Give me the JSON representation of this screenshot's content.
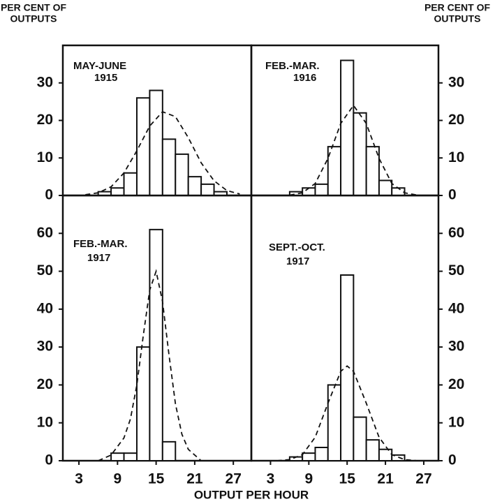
{
  "labels": {
    "y_label_left": [
      "PER CENT OF",
      "OUTPUTS"
    ],
    "y_label_right": [
      "PER CENT OF",
      "OUTPUTS"
    ],
    "x_label": "OUTPUT PER HOUR"
  },
  "chart_data": [
    {
      "type": "histogram",
      "title": "MAY-JUNE",
      "subtitle": "1915",
      "yaxis_side": "left",
      "bins": [
        6,
        8,
        10,
        12,
        14,
        16,
        18,
        20,
        22,
        24,
        26
      ],
      "counts": [
        1,
        2,
        6,
        26,
        28,
        15,
        11,
        5,
        3,
        1
      ],
      "curve_x": [
        4,
        6,
        8,
        10,
        12,
        14,
        16,
        18,
        20,
        22,
        24,
        26,
        28
      ],
      "curve_values": [
        0.2,
        0.7,
        2.3,
        6,
        11.9,
        18.5,
        22.3,
        21,
        15.4,
        8.7,
        3.9,
        1.3,
        0.4
      ],
      "xlim": [
        0.5,
        29.8
      ],
      "ylim": [
        0,
        40
      ],
      "yticks": [
        0,
        10,
        20,
        30
      ]
    },
    {
      "type": "histogram",
      "title": "FEB.-MAR.",
      "subtitle": "1916",
      "yaxis_side": "right",
      "bins": [
        6,
        8,
        10,
        12,
        14,
        16,
        18,
        20,
        22,
        24
      ],
      "counts": [
        1,
        2,
        3,
        13,
        36,
        22,
        13,
        4,
        2
      ],
      "curve_x": [
        6,
        8,
        10,
        12,
        14,
        16,
        18,
        20,
        22,
        24,
        26
      ],
      "curve_values": [
        0.1,
        0.7,
        3.2,
        9.9,
        19.2,
        24,
        19.2,
        9.9,
        3.2,
        0.7,
        0.1
      ],
      "xlim": [
        0,
        29.3
      ],
      "ylim": [
        0,
        40
      ],
      "yticks": [
        0,
        10,
        20,
        30
      ]
    },
    {
      "type": "histogram",
      "title": "FEB.-MAR.",
      "subtitle": "1917",
      "yaxis_side": "left",
      "bins": [
        8,
        10,
        12,
        14,
        16,
        18
      ],
      "counts": [
        2,
        2,
        30,
        61,
        5
      ],
      "curve_x": [
        6,
        8,
        10,
        11,
        12,
        13,
        14,
        15,
        16,
        17,
        18,
        19,
        20,
        22
      ],
      "curve_values": [
        0,
        1.5,
        6,
        11,
        20,
        33,
        45,
        50,
        42,
        28,
        15,
        7,
        3,
        0
      ],
      "xlim": [
        0.5,
        29.8
      ],
      "ylim": [
        0,
        70
      ],
      "yticks": [
        0,
        10,
        20,
        30,
        40,
        50,
        60
      ],
      "xticks": [
        3,
        9,
        15,
        21,
        27
      ]
    },
    {
      "type": "histogram",
      "title": "SEPT.-OCT.",
      "subtitle": "1917",
      "yaxis_side": "right",
      "bins": [
        6,
        8,
        10,
        12,
        14,
        16,
        18,
        20,
        22,
        24
      ],
      "counts": [
        1,
        2,
        3.5,
        20,
        49,
        11.5,
        5.5,
        3,
        1.5
      ],
      "curve_x": [
        4,
        6,
        8,
        10,
        12,
        14,
        15,
        16,
        18,
        20,
        22,
        24,
        26
      ],
      "curve_values": [
        0,
        0.3,
        1.6,
        6.2,
        15.2,
        23.6,
        25,
        23.6,
        15.2,
        6.2,
        1.6,
        0.3,
        0
      ],
      "xlim": [
        0,
        29.3
      ],
      "ylim": [
        0,
        70
      ],
      "yticks": [
        0,
        10,
        20,
        30,
        40,
        50,
        60
      ],
      "xticks": [
        3,
        9,
        15,
        21,
        27
      ]
    }
  ]
}
